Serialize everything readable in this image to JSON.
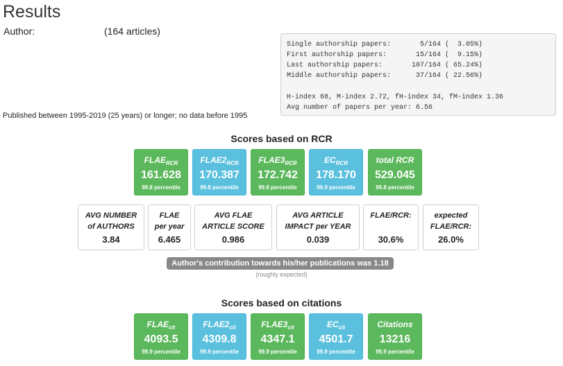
{
  "header": {
    "title": "Results",
    "author_label": "Author:",
    "author_count": "(164 articles)",
    "published": "Published between 1995-2019 (25 years) or longer; no data before 1995"
  },
  "stats": {
    "lines": [
      "Single authorship papers:       5/164 (  3.05%)",
      "First authorship papers:       15/164 (  9.15%)",
      "Last authorship papers:       107/164 ( 65.24%)",
      "Middle authorship papers:      37/164 ( 22.56%)"
    ],
    "index_line": "H-index 68, M-index 2.72, fH-index 34, fM-index 1.36",
    "avg_line": "Avg number of papers per year: 6.56"
  },
  "rcr": {
    "title": "Scores based on RCR",
    "tiles": [
      {
        "label": "FLAE",
        "sub": "RCR",
        "value": "161.628",
        "percentile": "99.8 percentile",
        "color": "#5cb85c"
      },
      {
        "label": "FLAE2",
        "sub": "RCR",
        "value": "170.387",
        "percentile": "99.8 percentile",
        "color": "#5bc0de"
      },
      {
        "label": "FLAE3",
        "sub": "RCR",
        "value": "172.742",
        "percentile": "99.8 percentile",
        "color": "#5cb85c"
      },
      {
        "label": "EC",
        "sub": "RCR",
        "value": "178.170",
        "percentile": "99.9 percentile",
        "color": "#5bc0de"
      },
      {
        "label": "total RCR",
        "sub": "",
        "value": "529.045",
        "percentile": "99.8 percentile",
        "color": "#5cb85c"
      }
    ]
  },
  "metrics": [
    {
      "line1": "AVG NUMBER",
      "line2": "of AUTHORS",
      "value": "3.84"
    },
    {
      "line1": "FLAE",
      "line2": "per year",
      "value": "6.465"
    },
    {
      "line1": "AVG FLAE",
      "line2": "ARTICLE SCORE",
      "value": "0.986"
    },
    {
      "line1": "AVG ARTICLE",
      "line2": "IMPACT per YEAR",
      "value": "0.039"
    },
    {
      "line1": "FLAE/RCR:",
      "line2": "",
      "value": "30.6%"
    },
    {
      "line1": "expected",
      "line2": "FLAE/RCR:",
      "value": "26.0%"
    }
  ],
  "contribution": {
    "badge": "Author's contribution towards his/her publications was 1.18",
    "note": "(roughly expected)"
  },
  "cit": {
    "title": "Scores based on citations",
    "tiles": [
      {
        "label": "FLAE",
        "sub": "cit",
        "value": "4093.5",
        "percentile": "99.9 percentile",
        "color": "#5cb85c"
      },
      {
        "label": "FLAE2",
        "sub": "cit",
        "value": "4309.8",
        "percentile": "99.9 percentile",
        "color": "#5bc0de"
      },
      {
        "label": "FLAE3",
        "sub": "cit",
        "value": "4347.1",
        "percentile": "99.9 percentile",
        "color": "#5cb85c"
      },
      {
        "label": "EC",
        "sub": "cit",
        "value": "4501.7",
        "percentile": "99.9 percentile",
        "color": "#5bc0de"
      },
      {
        "label": "Citations",
        "sub": "",
        "value": "13216",
        "percentile": "99.9 percentile",
        "color": "#5cb85c"
      }
    ]
  }
}
